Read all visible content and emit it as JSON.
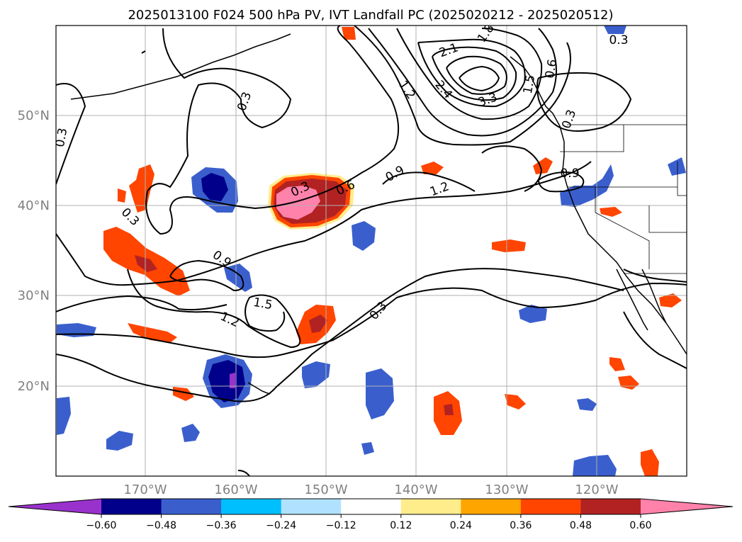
{
  "title": "2025013100 F024 500 hPa PV, IVT Landfall PC (2025020212 - 2025020512)",
  "lat_labels": [
    "50°N",
    "40°N",
    "30°N",
    "20°N"
  ],
  "lon_labels": [
    "170°W",
    "160°W",
    "150°W",
    "140°W",
    "130°W",
    "120°W"
  ],
  "colorbar": {
    "ticks": [
      "−0.60",
      "−0.48",
      "−0.36",
      "−0.24",
      "−0.12",
      "0.12",
      "0.24",
      "0.36",
      "0.48",
      "0.60"
    ],
    "colors": [
      "#9932cc",
      "#00008b",
      "#3a5fcd",
      "#00bfff",
      "#b0e2ff",
      "#ffffff",
      "#ffec8b",
      "#ffa500",
      "#ff4500",
      "#b22222",
      "#ff82ab"
    ]
  },
  "contour_labels": [
    "0.3",
    "0.3",
    "0.3",
    "0.3",
    "0.3",
    "0.3",
    "0.6",
    "0.6",
    "0.9",
    "0.9",
    "0.9",
    "1.2",
    "1.2",
    "1.2",
    "1.5",
    "1.5",
    "1.8",
    "2.1",
    "2.4",
    "3.3",
    "0.3"
  ],
  "colors": {
    "contour": "#000000",
    "grid": "#b0b0b0",
    "coast": "#000000"
  }
}
